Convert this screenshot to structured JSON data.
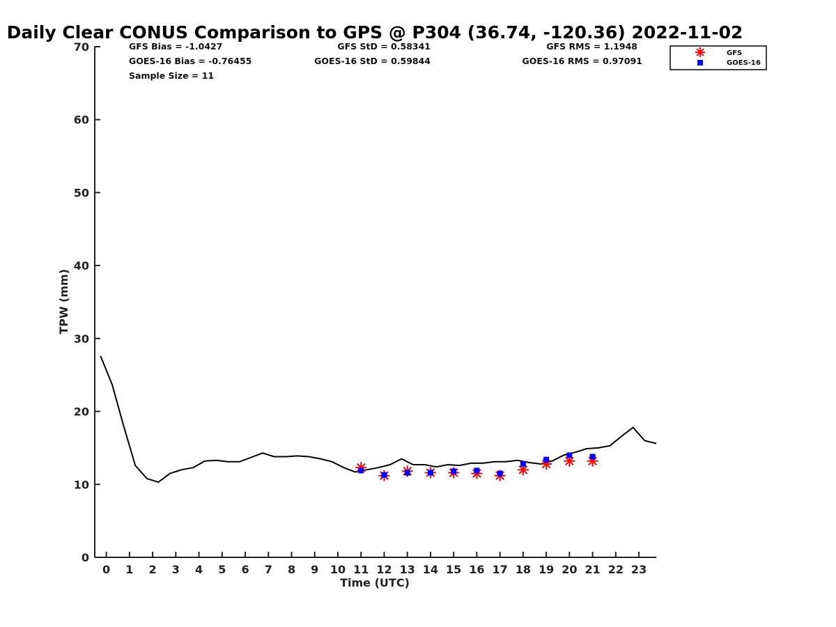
{
  "chart_data": {
    "type": "line",
    "title": "Daily Clear CONUS Comparison to GPS @ P304 (36.74, -120.36) 2022-11-02",
    "xlabel": "Time (UTC)",
    "ylabel": "TPW (mm)",
    "xlim": [
      -0.5,
      23.75
    ],
    "ylim": [
      0,
      70
    ],
    "x_ticks": [
      0,
      1,
      2,
      3,
      4,
      5,
      6,
      7,
      8,
      9,
      10,
      11,
      12,
      13,
      14,
      15,
      16,
      17,
      18,
      19,
      20,
      21,
      22,
      23
    ],
    "y_ticks": [
      0,
      10,
      20,
      30,
      40,
      50,
      60,
      70
    ],
    "grid": false,
    "legend": {
      "position": "top-right",
      "entries": [
        "GFS",
        "GOES-16"
      ]
    },
    "stats": {
      "gfs_bias": "GFS Bias = -1.0427",
      "goes_bias": "GOES-16 Bias = -0.76455",
      "sample_size": "Sample Size = 11",
      "gfs_std": "GFS StD = 0.58341",
      "goes_std": "GOES-16 StD = 0.59844",
      "gfs_rms": "GFS RMS = 1.1948",
      "goes_rms": "GOES-16 RMS = 0.97091"
    },
    "series": [
      {
        "style": "line",
        "color": "#000000",
        "x": [
          -0.25,
          0.25,
          0.75,
          1.25,
          1.75,
          2.25,
          2.75,
          3.25,
          3.75,
          4.25,
          4.75,
          5.25,
          5.75,
          6.25,
          6.75,
          7.25,
          7.75,
          8.25,
          8.75,
          9.25,
          9.75,
          10.25,
          10.75,
          11.25,
          11.75,
          12.25,
          12.75,
          13.25,
          13.75,
          14.25,
          14.75,
          15.25,
          15.75,
          16.25,
          16.75,
          17.25,
          17.75,
          18.25,
          18.75,
          19.25,
          19.75,
          20.25,
          20.75,
          21.25,
          21.75,
          22.25,
          22.75,
          23.25,
          23.75
        ],
        "y": [
          27.6,
          23.7,
          18.0,
          12.6,
          10.8,
          10.3,
          11.5,
          12.0,
          12.3,
          13.2,
          13.3,
          13.1,
          13.1,
          13.7,
          14.3,
          13.8,
          13.8,
          13.9,
          13.8,
          13.5,
          13.1,
          12.3,
          11.7,
          12.0,
          12.3,
          12.7,
          13.5,
          12.7,
          12.7,
          12.4,
          12.7,
          12.6,
          12.9,
          12.9,
          13.1,
          13.1,
          13.3,
          13.0,
          12.8,
          13.2,
          14.0,
          14.4,
          14.9,
          15.0,
          15.3,
          16.6,
          17.8,
          16.0,
          15.6
        ]
      },
      {
        "name": "GFS",
        "style": "asterisk",
        "color": "#ff0000",
        "x": [
          11,
          12,
          13,
          14,
          15,
          16,
          17,
          18,
          19,
          20,
          21
        ],
        "y": [
          12.3,
          11.2,
          11.8,
          11.6,
          11.6,
          11.5,
          11.2,
          12.0,
          12.8,
          13.2,
          13.2
        ]
      },
      {
        "name": "GOES-16",
        "style": "square",
        "color": "#0000ff",
        "x": [
          11,
          12,
          13,
          14,
          15,
          16,
          17,
          18,
          19,
          20,
          21
        ],
        "y": [
          11.9,
          11.3,
          11.6,
          11.6,
          11.8,
          11.9,
          11.5,
          12.8,
          13.4,
          14.0,
          13.8
        ]
      }
    ]
  }
}
